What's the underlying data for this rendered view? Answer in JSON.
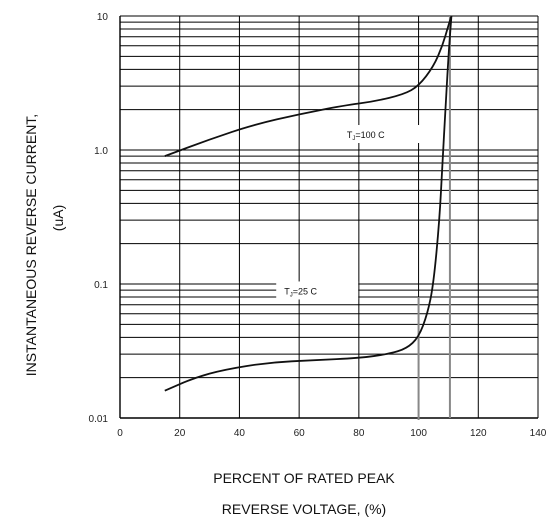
{
  "chart_data": {
    "type": "line",
    "title": "",
    "ylabel_lines": [
      "INSTANTANEOUS REVERSE CURRENT,",
      "(uA)"
    ],
    "xlabel_lines": [
      "PERCENT OF RATED PEAK",
      "REVERSE VOLTAGE, (%)"
    ],
    "y_scale": "log",
    "xlim": [
      0,
      140
    ],
    "ylim": [
      0.01,
      10
    ],
    "x_ticks": [
      0,
      20,
      40,
      60,
      80,
      100,
      120,
      140
    ],
    "y_ticks": [
      {
        "value": 0.01,
        "label": "0.01"
      },
      {
        "value": 0.1,
        "label": "0.1"
      },
      {
        "value": 1,
        "label": "1.0"
      },
      {
        "value": 10,
        "label": "10"
      }
    ],
    "grid": true,
    "marker_line_x": 100,
    "series": [
      {
        "name": "TJ=100 C",
        "label_main": "T",
        "label_sub": "J",
        "label_rest": "=100    C",
        "points": [
          [
            15,
            0.9
          ],
          [
            30,
            1.2
          ],
          [
            45,
            1.55
          ],
          [
            60,
            1.85
          ],
          [
            75,
            2.15
          ],
          [
            85,
            2.3
          ],
          [
            95,
            2.6
          ],
          [
            100,
            3.0
          ],
          [
            105,
            4.2
          ],
          [
            108,
            6.0
          ],
          [
            110,
            8.5
          ],
          [
            111,
            10
          ]
        ]
      },
      {
        "name": "TJ=25 C",
        "label_main": "T",
        "label_sub": "J",
        "label_rest": "=25    C",
        "points": [
          [
            15,
            0.016
          ],
          [
            25,
            0.02
          ],
          [
            35,
            0.023
          ],
          [
            50,
            0.026
          ],
          [
            65,
            0.027
          ],
          [
            80,
            0.028
          ],
          [
            90,
            0.03
          ],
          [
            96,
            0.033
          ],
          [
            100,
            0.04
          ],
          [
            103,
            0.06
          ],
          [
            105,
            0.1
          ],
          [
            107,
            0.3
          ],
          [
            108,
            0.8
          ],
          [
            109,
            2.0
          ],
          [
            110,
            5.0
          ],
          [
            111,
            10
          ]
        ]
      }
    ]
  }
}
